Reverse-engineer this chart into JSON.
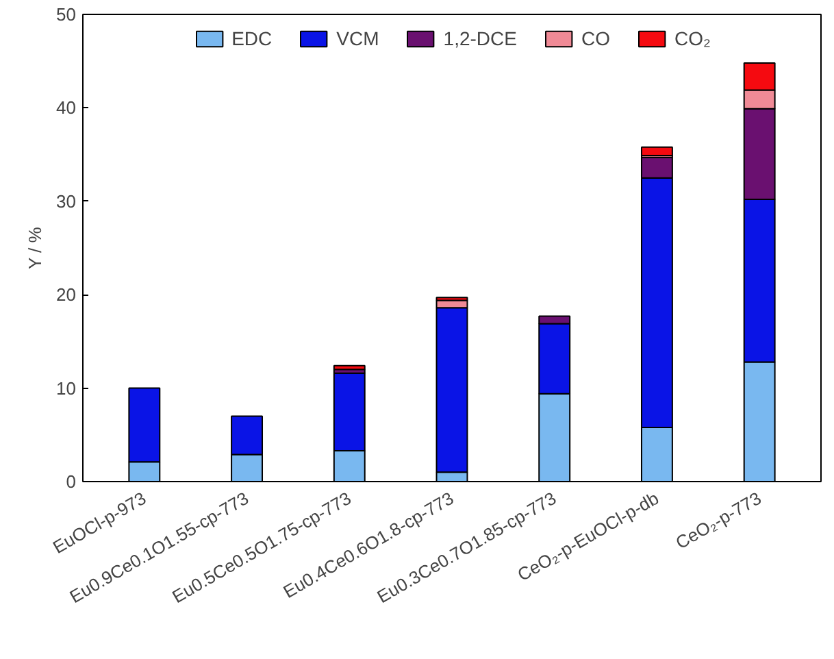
{
  "chart_data": {
    "type": "bar",
    "stacked": true,
    "ylabel": "Y / %",
    "categories": [
      "EuOCl-p-973",
      "Eu0.9Ce0.1O1.55-cp-773",
      "Eu0.5Ce0.5O1.75-cp-773",
      "Eu0.4Ce0.6O1.8-cp-773",
      "Eu0.3Ce0.7O1.85-cp-773",
      "CeO₂-p-EuOCl-p-db",
      "CeO₂-p-773"
    ],
    "series": [
      {
        "name": "EDC",
        "color": "#79b8f0",
        "values": [
          2.1,
          2.9,
          3.3,
          1.0,
          9.4,
          5.8,
          12.8
        ]
      },
      {
        "name": "VCM",
        "color": "#0a14e6",
        "values": [
          7.9,
          4.1,
          8.3,
          17.6,
          7.5,
          26.7,
          17.4
        ]
      },
      {
        "name": "1,2-DCE",
        "color": "#6a1070",
        "values": [
          0,
          0,
          0.4,
          null,
          0.8,
          2.2,
          9.7
        ]
      },
      {
        "name": "CO",
        "color": "#f08a96",
        "values": [
          0,
          0,
          null,
          0.8,
          0,
          0.2,
          2.0
        ]
      },
      {
        "name": "CO₂",
        "color": "#f50a10",
        "values": [
          0,
          0,
          0.4,
          0.3,
          null,
          0.9,
          2.9
        ]
      }
    ],
    "ylim": [
      0,
      50
    ],
    "yticks": [
      0,
      10,
      20,
      30,
      40,
      50
    ],
    "grid": false,
    "legend": "top"
  }
}
